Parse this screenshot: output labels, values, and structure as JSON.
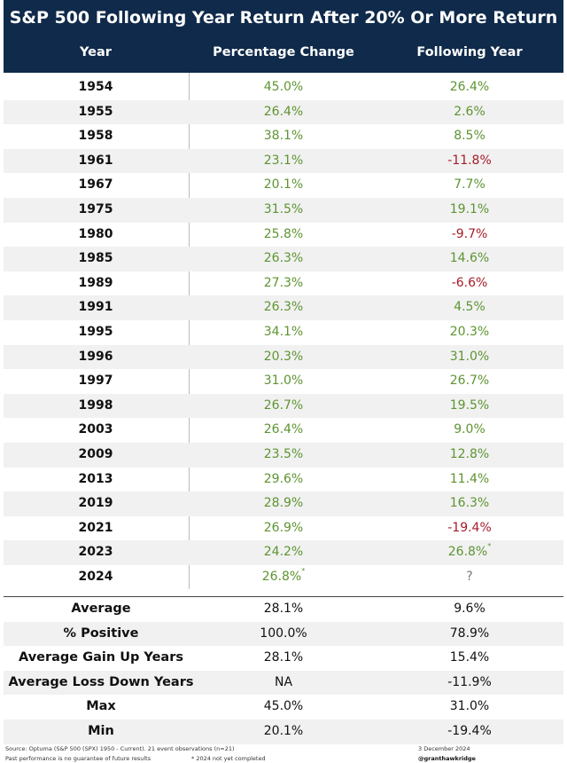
{
  "header": {
    "title": "S&P 500 Following Year Return After 20% Or More Return",
    "columns": [
      "Year",
      "Percentage Change",
      "Following Year"
    ]
  },
  "table": {
    "rows": [
      [
        "1954",
        "45.0%",
        "26.4%"
      ],
      [
        "1955",
        "26.4%",
        "2.6%"
      ],
      [
        "1958",
        "38.1%",
        "8.5%"
      ],
      [
        "1961",
        "23.1%",
        "-11.8%"
      ],
      [
        "1967",
        "20.1%",
        "7.7%"
      ],
      [
        "1975",
        "31.5%",
        "19.1%"
      ],
      [
        "1980",
        "25.8%",
        "-9.7%"
      ],
      [
        "1985",
        "26.3%",
        "14.6%"
      ],
      [
        "1989",
        "27.3%",
        "-6.6%"
      ],
      [
        "1991",
        "26.3%",
        "4.5%"
      ],
      [
        "1995",
        "34.1%",
        "20.3%"
      ],
      [
        "1996",
        "20.3%",
        "31.0%"
      ],
      [
        "1997",
        "31.0%",
        "26.7%"
      ],
      [
        "1998",
        "26.7%",
        "19.5%"
      ],
      [
        "2003",
        "26.4%",
        "9.0%"
      ],
      [
        "2009",
        "23.5%",
        "12.8%"
      ],
      [
        "2013",
        "29.6%",
        "11.4%"
      ],
      [
        "2019",
        "28.9%",
        "16.3%"
      ],
      [
        "2021",
        "26.9%",
        "-19.4%"
      ],
      [
        "2023",
        "24.2%",
        {
          "text": "26.8%",
          "mark": "*"
        }
      ],
      [
        "2024",
        {
          "text": "26.8%",
          "mark": "*"
        },
        "?"
      ]
    ]
  },
  "summary": {
    "rows": [
      [
        "Average",
        "28.1%",
        "9.6%"
      ],
      [
        "% Positive",
        "100.0%",
        "78.9%"
      ],
      [
        "Average Gain Up Years",
        "28.1%",
        "15.4%"
      ],
      [
        "Average Loss Down Years",
        "NA",
        "-11.9%"
      ],
      [
        "Max",
        "45.0%",
        "31.0%"
      ],
      [
        "Min",
        "20.1%",
        "-19.4%"
      ]
    ]
  },
  "footer": {
    "source": "Source: Optuma (S&P 500 (SPX) 1950 - Current). 21 event observations (n=21)",
    "disclaimer": "Past performance is no guarantee of future results",
    "note": "* 2024 not yet completed",
    "date": "3 December 2024",
    "handle": "@granthawkridge"
  }
}
